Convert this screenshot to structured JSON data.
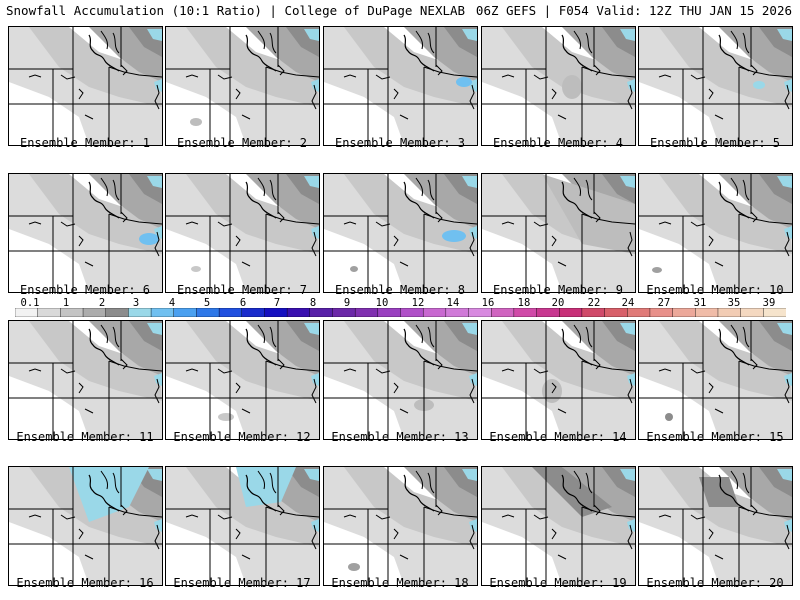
{
  "header": {
    "title": "Snowfall Accumulation (10:1 Ratio) | College of DuPage NEXLAB",
    "run": "06Z GEFS | F054 Valid: 12Z THU JAN 15 2026"
  },
  "colorbar": {
    "ticks": [
      "0.1",
      "1",
      "2",
      "3",
      "4",
      "5",
      "6",
      "7",
      "8",
      "9",
      "10",
      "12",
      "14",
      "16",
      "18",
      "20",
      "22",
      "24",
      "27",
      "31",
      "35",
      "39"
    ],
    "colors": [
      "#f2f2f2",
      "#d9d9d9",
      "#c4c4c4",
      "#acacac",
      "#8c8c8c",
      "#9ad8e8",
      "#70c0f0",
      "#4aa0f0",
      "#2e78e8",
      "#2050e0",
      "#1a2ccc",
      "#1610c0",
      "#3a10b0",
      "#5820a8",
      "#6c28a8",
      "#8030b0",
      "#9a40c0",
      "#b050c8",
      "#c868d0",
      "#d07ad8",
      "#d88ae0",
      "#d064c0",
      "#d04aa8",
      "#c83890",
      "#c83078",
      "#d04a6a",
      "#d8606a",
      "#e07a78",
      "#e8908a",
      "#eca89a",
      "#f0bca8",
      "#f2ccb4",
      "#f4d8c0",
      "#f6e4cc"
    ]
  },
  "members": [
    {
      "label": "Ensemble Member: 1"
    },
    {
      "label": "Ensemble Member: 2"
    },
    {
      "label": "Ensemble Member: 3"
    },
    {
      "label": "Ensemble Member: 4"
    },
    {
      "label": "Ensemble Member: 5"
    },
    {
      "label": "Ensemble Member: 6"
    },
    {
      "label": "Ensemble Member: 7"
    },
    {
      "label": "Ensemble Member: 8"
    },
    {
      "label": "Ensemble Member: 9"
    },
    {
      "label": "Ensemble Member: 10"
    },
    {
      "label": "Ensemble Member: 11"
    },
    {
      "label": "Ensemble Member: 12"
    },
    {
      "label": "Ensemble Member: 13"
    },
    {
      "label": "Ensemble Member: 14"
    },
    {
      "label": "Ensemble Member: 15"
    },
    {
      "label": "Ensemble Member: 16"
    },
    {
      "label": "Ensemble Member: 17"
    },
    {
      "label": "Ensemble Member: 18"
    },
    {
      "label": "Ensemble Member: 19"
    },
    {
      "label": "Ensemble Member: 20"
    }
  ]
}
